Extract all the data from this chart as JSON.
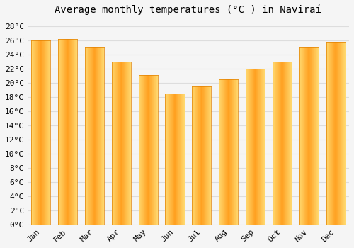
{
  "title": "Average monthly temperatures (°C ) in Naviraí",
  "months": [
    "Jan",
    "Feb",
    "Mar",
    "Apr",
    "May",
    "Jun",
    "Jul",
    "Aug",
    "Sep",
    "Oct",
    "Nov",
    "Dec"
  ],
  "values": [
    26.0,
    26.2,
    25.0,
    23.0,
    21.1,
    18.5,
    19.5,
    20.5,
    22.0,
    23.0,
    25.0,
    25.8
  ],
  "bar_color_main": "#FFA020",
  "bar_color_light": "#FFD870",
  "bar_color_edge": "#E08000",
  "ylim": [
    0,
    29
  ],
  "yticks": [
    0,
    2,
    4,
    6,
    8,
    10,
    12,
    14,
    16,
    18,
    20,
    22,
    24,
    26,
    28
  ],
  "ytick_labels": [
    "0°C",
    "2°C",
    "4°C",
    "6°C",
    "8°C",
    "10°C",
    "12°C",
    "14°C",
    "16°C",
    "18°C",
    "20°C",
    "22°C",
    "24°C",
    "26°C",
    "28°C"
  ],
  "background_color": "#f5f5f5",
  "grid_color": "#dddddd",
  "title_fontsize": 10,
  "tick_fontsize": 8,
  "font_family": "monospace",
  "bar_width": 0.72
}
